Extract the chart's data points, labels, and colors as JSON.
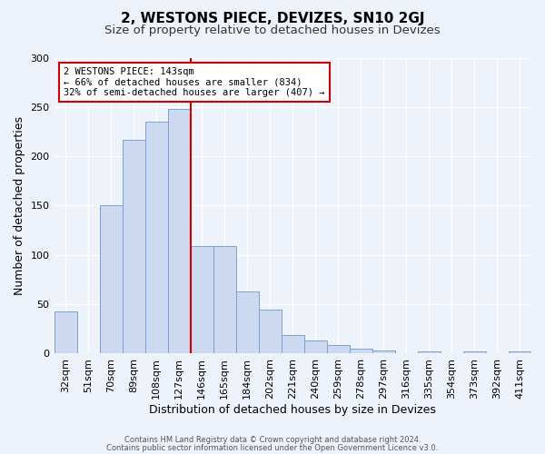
{
  "title": "2, WESTONS PIECE, DEVIZES, SN10 2GJ",
  "subtitle": "Size of property relative to detached houses in Devizes",
  "xlabel": "Distribution of detached houses by size in Devizes",
  "ylabel": "Number of detached properties",
  "bin_labels": [
    "32sqm",
    "51sqm",
    "70sqm",
    "89sqm",
    "108sqm",
    "127sqm",
    "146sqm",
    "165sqm",
    "184sqm",
    "202sqm",
    "221sqm",
    "240sqm",
    "259sqm",
    "278sqm",
    "297sqm",
    "316sqm",
    "335sqm",
    "354sqm",
    "373sqm",
    "392sqm",
    "411sqm"
  ],
  "bar_values": [
    42,
    0,
    150,
    217,
    235,
    248,
    109,
    109,
    63,
    44,
    18,
    13,
    8,
    5,
    3,
    0,
    2,
    0,
    2,
    0,
    2
  ],
  "bar_color": "#ccd9ef",
  "bar_edge_color": "#7ca0d4",
  "vline_x": 6,
  "vline_color": "#cc0000",
  "annotation_text": "2 WESTONS PIECE: 143sqm\n← 66% of detached houses are smaller (834)\n32% of semi-detached houses are larger (407) →",
  "annotation_box_color": "#ffffff",
  "annotation_box_edge": "#cc0000",
  "ylim": [
    0,
    300
  ],
  "yticks": [
    0,
    50,
    100,
    150,
    200,
    250,
    300
  ],
  "footer_line1": "Contains HM Land Registry data © Crown copyright and database right 2024.",
  "footer_line2": "Contains public sector information licensed under the Open Government Licence v3.0.",
  "bg_color": "#eef2fa",
  "title_fontsize": 11,
  "subtitle_fontsize": 9.5,
  "ylabel_fontsize": 9,
  "xlabel_fontsize": 9,
  "tick_fontsize": 8,
  "annot_fontsize": 7.5,
  "footer_fontsize": 6
}
